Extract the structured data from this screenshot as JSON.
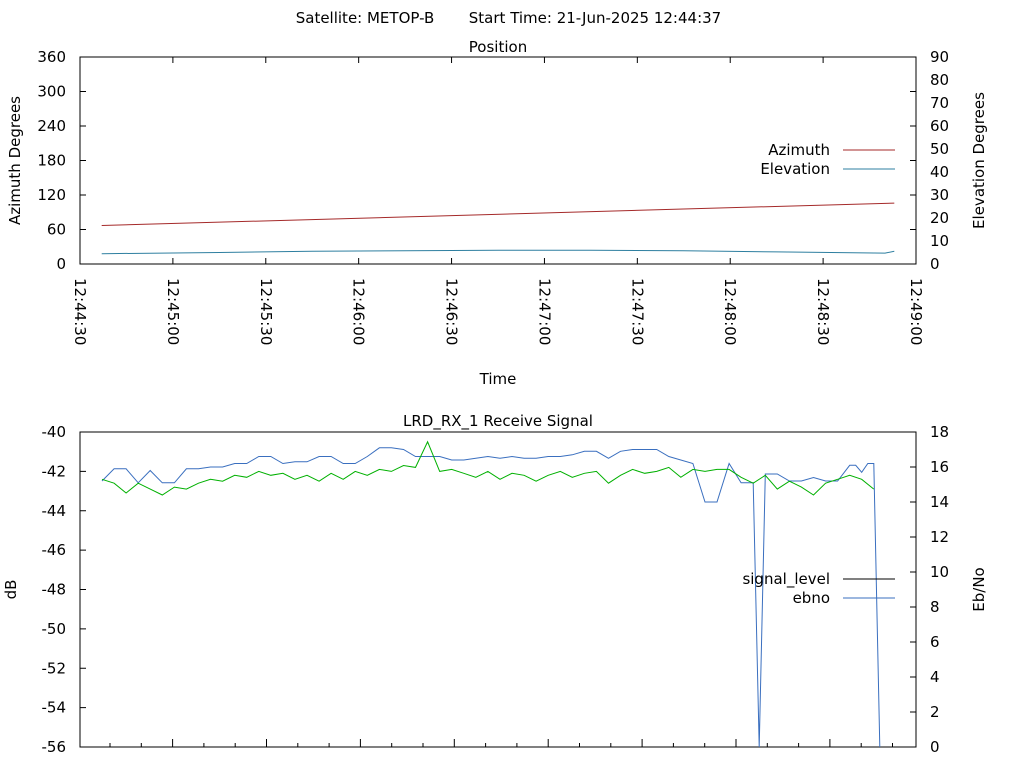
{
  "header": {
    "satellite": "Satellite: METOP-B",
    "start_time": "Start Time: 21-Jun-2025 12:44:37"
  },
  "colors": {
    "azimuth": "#a52a2a",
    "elevation": "#2e7fa0",
    "signal_level": "#00b000",
    "ebno": "#3a6fbf",
    "axis": "#000000"
  },
  "chart_data": [
    {
      "type": "line",
      "title": "Position",
      "xlabel": "Time",
      "ylabel": "Azimuth Degrees",
      "y2label": "Elevation Degrees",
      "ylim": [
        0,
        360
      ],
      "y2lim": [
        0,
        90
      ],
      "yticks": [
        "0",
        "60",
        "120",
        "180",
        "240",
        "300",
        "360"
      ],
      "y2ticks": [
        "0",
        "10",
        "20",
        "30",
        "40",
        "50",
        "60",
        "70",
        "80",
        "90"
      ],
      "xlim": [
        "12:44:30",
        "12:49:00"
      ],
      "xticks": [
        "12:44:30",
        "12:45:00",
        "12:45:30",
        "12:46:00",
        "12:46:30",
        "12:47:00",
        "12:47:30",
        "12:48:00",
        "12:48:30",
        "12:49:00"
      ],
      "legend_position": "right",
      "legend": [
        "Azimuth",
        "Elevation"
      ],
      "series": [
        {
          "name": "Azimuth",
          "axis": "left",
          "x": [
            "12:44:37",
            "12:48:53"
          ],
          "values": [
            67,
            106
          ]
        },
        {
          "name": "Elevation",
          "axis": "left",
          "x": [
            "12:44:37",
            "12:45:15",
            "12:45:45",
            "12:46:15",
            "12:46:45",
            "12:47:15",
            "12:47:45",
            "12:48:15",
            "12:48:50",
            "12:48:53"
          ],
          "values": [
            18,
            20,
            22,
            23,
            24,
            24,
            23,
            21,
            19,
            22
          ]
        }
      ]
    },
    {
      "type": "line",
      "title": "LRD_RX_1 Receive Signal",
      "xlabel": "",
      "ylabel": "dB",
      "y2label": "Eb/No",
      "ylim": [
        -56,
        -40
      ],
      "y2lim": [
        0,
        18
      ],
      "yticks": [
        "-56",
        "-54",
        "-52",
        "-50",
        "-48",
        "-46",
        "-44",
        "-42",
        "-40"
      ],
      "y2ticks": [
        "0",
        "2",
        "4",
        "6",
        "8",
        "10",
        "12",
        "14",
        "16",
        "18"
      ],
      "legend_position": "right",
      "legend": [
        "signal_level",
        "ebno"
      ],
      "series": [
        {
          "name": "signal_level",
          "axis": "left",
          "x": [
            0,
            4,
            8,
            12,
            16,
            20,
            24,
            28,
            32,
            36,
            40,
            44,
            48,
            52,
            56,
            60,
            64,
            68,
            72,
            76,
            80,
            84,
            88,
            92,
            96,
            100,
            104,
            108,
            112,
            116,
            120,
            124,
            128,
            132,
            136,
            140,
            144,
            148,
            152,
            156,
            160,
            164,
            168,
            172,
            176,
            180,
            184,
            188,
            192,
            196,
            200,
            204,
            208,
            212,
            216,
            220,
            224,
            228,
            232,
            236,
            240,
            244,
            248,
            252,
            256
          ],
          "values": [
            -42.4,
            -42.6,
            -43.1,
            -42.6,
            -42.9,
            -43.2,
            -42.8,
            -42.9,
            -42.6,
            -42.4,
            -42.5,
            -42.2,
            -42.3,
            -42.0,
            -42.2,
            -42.1,
            -42.4,
            -42.2,
            -42.5,
            -42.1,
            -42.4,
            -42.0,
            -42.2,
            -41.9,
            -42.0,
            -41.7,
            -41.8,
            -40.5,
            -42.0,
            -41.9,
            -42.1,
            -42.3,
            -42.0,
            -42.4,
            -42.1,
            -42.2,
            -42.5,
            -42.2,
            -42.0,
            -42.3,
            -42.1,
            -42.0,
            -42.6,
            -42.2,
            -41.9,
            -42.1,
            -42.0,
            -41.8,
            -42.3,
            -41.9,
            -42.0,
            -41.9,
            -41.9,
            -42.3,
            -42.6,
            -42.2,
            -42.9,
            -42.5,
            -42.8,
            -43.2,
            -42.6,
            -42.4,
            -42.2,
            -42.4,
            -42.9
          ]
        },
        {
          "name": "ebno",
          "axis": "right",
          "x": [
            0,
            4,
            8,
            12,
            16,
            20,
            24,
            28,
            32,
            36,
            40,
            44,
            48,
            52,
            56,
            60,
            64,
            68,
            72,
            76,
            80,
            84,
            88,
            92,
            96,
            100,
            104,
            108,
            112,
            116,
            120,
            124,
            128,
            132,
            136,
            140,
            144,
            148,
            152,
            156,
            160,
            164,
            168,
            172,
            176,
            180,
            184,
            188,
            196,
            200,
            204,
            208,
            212,
            216,
            218,
            220,
            224,
            228,
            232,
            236,
            240,
            244,
            248,
            250,
            252,
            254,
            256,
            258
          ],
          "values": [
            15.2,
            15.9,
            15.9,
            15.1,
            15.8,
            15.1,
            15.1,
            15.9,
            15.9,
            16.0,
            16.0,
            16.2,
            16.2,
            16.6,
            16.6,
            16.2,
            16.3,
            16.3,
            16.6,
            16.6,
            16.2,
            16.2,
            16.6,
            17.1,
            17.1,
            17.0,
            16.6,
            16.6,
            16.6,
            16.4,
            16.4,
            16.5,
            16.6,
            16.5,
            16.6,
            16.5,
            16.5,
            16.6,
            16.6,
            16.7,
            16.9,
            16.9,
            16.5,
            16.9,
            17.0,
            17.0,
            17.0,
            16.6,
            16.2,
            14.0,
            14.0,
            16.2,
            15.1,
            15.1,
            0.0,
            15.6,
            15.6,
            15.2,
            15.2,
            15.4,
            15.2,
            15.2,
            16.1,
            16.1,
            15.7,
            16.2,
            16.2,
            0.0
          ]
        }
      ]
    }
  ]
}
